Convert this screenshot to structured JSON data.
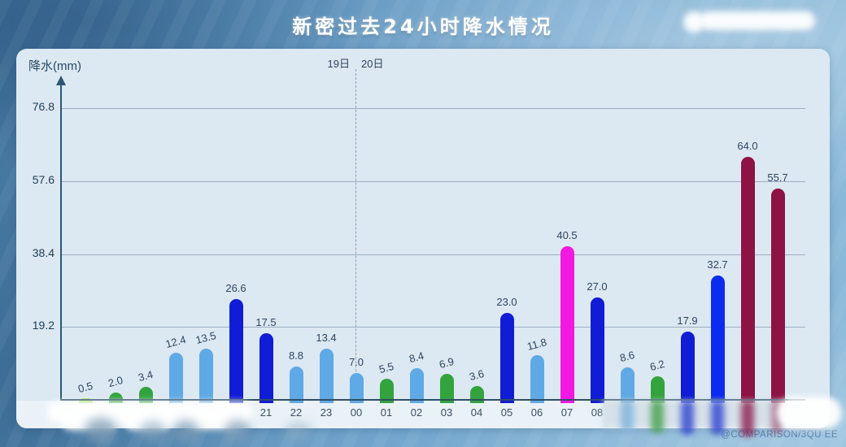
{
  "page": {
    "watermark": "@COMPARISON/3QU EE"
  },
  "chart_data": {
    "type": "bar",
    "title": "新密过去24小时降水情况",
    "ylabel": "降水(mm)",
    "xlabel": "",
    "ylim": [
      0,
      86.4
    ],
    "yticks": [
      19.2,
      38.4,
      57.6,
      76.8
    ],
    "grid": true,
    "legend_position": "none",
    "day_labels": [
      "19日",
      "20日"
    ],
    "day_divider_between": [
      "23",
      "00"
    ],
    "categories": [
      "",
      "",
      "",
      "",
      "",
      "",
      "21",
      "22",
      "23",
      "00",
      "01",
      "02",
      "03",
      "04",
      "05",
      "06",
      "07",
      "08",
      "",
      "",
      "",
      "",
      "",
      ""
    ],
    "x_labels_redacted_first": 6,
    "x_labels_redacted_last": 6,
    "values": [
      0.5,
      2.0,
      3.4,
      12.4,
      13.5,
      26.6,
      17.5,
      8.8,
      13.4,
      7.0,
      5.5,
      8.4,
      6.9,
      3.6,
      23.0,
      11.8,
      40.5,
      27.0,
      8.6,
      6.2,
      17.9,
      32.7,
      64.0,
      55.7
    ],
    "value_labels": [
      "0.5",
      "2.0",
      "3.4",
      "12.4",
      "13.5",
      "26.6",
      "17.5",
      "8.8",
      "13.4",
      "7.0",
      "5.5",
      "8.4",
      "6.9",
      "3.6",
      "23.0",
      "11.8",
      "40.5",
      "27.0",
      "8.6",
      "6.2",
      "17.9",
      "32.7",
      "64.0",
      "55.7"
    ],
    "bar_colors": [
      "#a3e05e",
      "#33a33e",
      "#33a33e",
      "#5fa9e6",
      "#5fa9e6",
      "#111cd6",
      "#111cd6",
      "#5fa9e6",
      "#5fa9e6",
      "#5fa9e6",
      "#33a33e",
      "#5fa9e6",
      "#33a33e",
      "#33a33e",
      "#111cd6",
      "#5fa9e6",
      "#f318e2",
      "#111cd6",
      "#5fa9e6",
      "#33a33e",
      "#111cd6",
      "#0b2cf0",
      "#8d1345",
      "#8d1345"
    ],
    "value_label_rotated": [
      true,
      true,
      true,
      true,
      true,
      false,
      false,
      false,
      false,
      false,
      true,
      true,
      true,
      true,
      false,
      true,
      false,
      false,
      true,
      true,
      false,
      false,
      false,
      false
    ],
    "palette": {
      "light_green": "#a3e05e",
      "green": "#33a33e",
      "light_blue": "#5fa9e6",
      "blue": "#111cd6",
      "bright_blue": "#0b2cf0",
      "magenta": "#f318e2",
      "dark_red": "#8d1345",
      "panel_bg": "#dce8f2",
      "axis": "#2b5876",
      "gridline": "#9db0c0",
      "text": "#2e4560"
    }
  }
}
